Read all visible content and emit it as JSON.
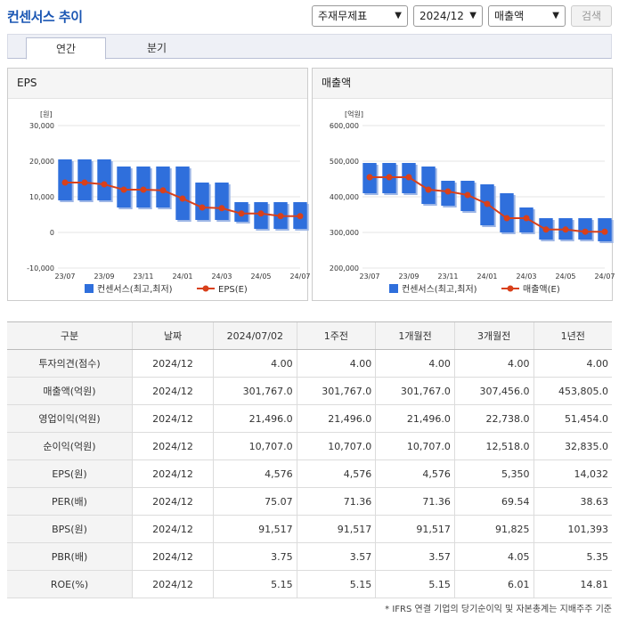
{
  "header": {
    "title": "컨센서스 추이",
    "select_type": "주재무제표",
    "select_period": "2024/12",
    "select_metric": "매출액",
    "search_label": "검색"
  },
  "tabs": [
    {
      "label": "연간",
      "active": true
    },
    {
      "label": "분기",
      "active": false
    }
  ],
  "chart_data": [
    {
      "type": "bar",
      "title": "EPS",
      "ylabel": "[원]",
      "ylim": [
        -10000,
        30000
      ],
      "yticks": [
        "30,000",
        "20,000",
        "10,000",
        "0",
        "-10,000"
      ],
      "x": [
        "23/07",
        "23/08",
        "23/09",
        "23/10",
        "23/11",
        "23/12",
        "24/01",
        "24/02",
        "24/03",
        "24/04",
        "24/05",
        "24/06",
        "24/07"
      ],
      "xtick_labels": [
        "23/07",
        "23/09",
        "23/11",
        "24/01",
        "24/03",
        "24/05",
        "24/07"
      ],
      "series": [
        {
          "name": "컨센서스(최고,최저)",
          "kind": "range",
          "color": "#2f6fdc",
          "low": [
            9000,
            9000,
            9000,
            7000,
            7000,
            7000,
            3500,
            3500,
            3500,
            3000,
            1000,
            1000,
            1000
          ],
          "high": [
            20500,
            20500,
            20500,
            18500,
            18500,
            18500,
            18500,
            14000,
            14000,
            8500,
            8500,
            8500,
            8500
          ]
        },
        {
          "name": "EPS(E)",
          "kind": "line",
          "color": "#d9401a",
          "values": [
            14000,
            14000,
            13500,
            12000,
            12000,
            11800,
            9500,
            7000,
            6800,
            5300,
            5300,
            4600,
            4576
          ]
        }
      ]
    },
    {
      "type": "bar",
      "title": "매출액",
      "ylabel": "[억원]",
      "ylim": [
        200000,
        600000
      ],
      "yticks": [
        "600,000",
        "500,000",
        "400,000",
        "300,000",
        "200,000"
      ],
      "x": [
        "23/07",
        "23/08",
        "23/09",
        "23/10",
        "23/11",
        "23/12",
        "24/01",
        "24/02",
        "24/03",
        "24/04",
        "24/05",
        "24/06",
        "24/07"
      ],
      "xtick_labels": [
        "23/07",
        "23/09",
        "23/11",
        "24/01",
        "24/03",
        "24/05",
        "24/07"
      ],
      "series": [
        {
          "name": "컨센서스(최고,최저)",
          "kind": "range",
          "color": "#2f6fdc",
          "low": [
            410000,
            410000,
            410000,
            380000,
            375000,
            360000,
            320000,
            300000,
            300000,
            280000,
            280000,
            280000,
            275000
          ],
          "high": [
            495000,
            495000,
            495000,
            485000,
            445000,
            445000,
            435000,
            410000,
            370000,
            340000,
            340000,
            340000,
            340000
          ]
        },
        {
          "name": "매출액(E)",
          "kind": "line",
          "color": "#d9401a",
          "values": [
            455000,
            455000,
            455000,
            420000,
            415000,
            405000,
            380000,
            340000,
            340000,
            308000,
            308000,
            302000,
            301767
          ]
        }
      ]
    }
  ],
  "table": {
    "headers": [
      "구분",
      "날짜",
      "2024/07/02",
      "1주전",
      "1개월전",
      "3개월전",
      "1년전"
    ],
    "rows": [
      {
        "label": "투자의견(점수)",
        "date": "2024/12",
        "v": [
          "4.00",
          "4.00",
          "4.00",
          "4.00",
          "4.00"
        ]
      },
      {
        "label": "매출액(억원)",
        "date": "2024/12",
        "v": [
          "301,767.0",
          "301,767.0",
          "301,767.0",
          "307,456.0",
          "453,805.0"
        ]
      },
      {
        "label": "영업이익(억원)",
        "date": "2024/12",
        "v": [
          "21,496.0",
          "21,496.0",
          "21,496.0",
          "22,738.0",
          "51,454.0"
        ]
      },
      {
        "label": "순이익(억원)",
        "date": "2024/12",
        "v": [
          "10,707.0",
          "10,707.0",
          "10,707.0",
          "12,518.0",
          "32,835.0"
        ]
      },
      {
        "label": "EPS(원)",
        "date": "2024/12",
        "v": [
          "4,576",
          "4,576",
          "4,576",
          "5,350",
          "14,032"
        ]
      },
      {
        "label": "PER(배)",
        "date": "2024/12",
        "v": [
          "75.07",
          "71.36",
          "71.36",
          "69.54",
          "38.63"
        ]
      },
      {
        "label": "BPS(원)",
        "date": "2024/12",
        "v": [
          "91,517",
          "91,517",
          "91,517",
          "91,825",
          "101,393"
        ]
      },
      {
        "label": "PBR(배)",
        "date": "2024/12",
        "v": [
          "3.75",
          "3.57",
          "3.57",
          "4.05",
          "5.35"
        ]
      },
      {
        "label": "ROE(%)",
        "date": "2024/12",
        "v": [
          "5.15",
          "5.15",
          "5.15",
          "6.01",
          "14.81"
        ]
      }
    ]
  },
  "footnote": "* IFRS 연결 기업의 당기순이익 및 자본총계는 지배주주 기준"
}
